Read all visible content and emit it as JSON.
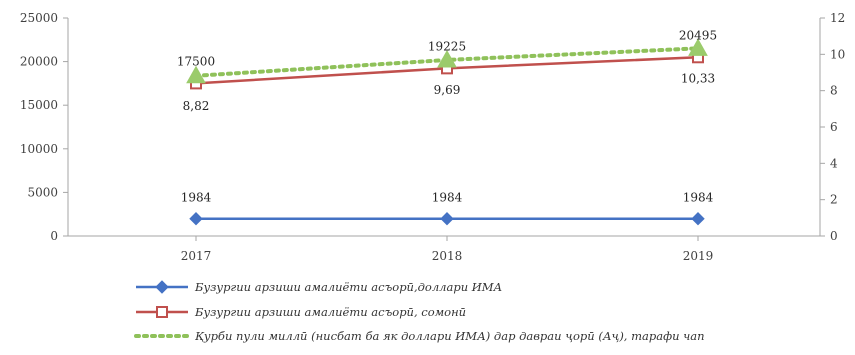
{
  "chart_data": {
    "type": "line",
    "categories": [
      "2017",
      "2018",
      "2019"
    ],
    "y_left": {
      "min": 0,
      "max": 25000,
      "ticks": [
        "0",
        "5000",
        "10000",
        "15000",
        "20000",
        "25000"
      ]
    },
    "y_right": {
      "min": 0,
      "max": 12,
      "ticks": [
        "0",
        "2",
        "4",
        "6",
        "8",
        "10",
        "12"
      ]
    },
    "grid": false,
    "legend_position": "bottom",
    "series": [
      {
        "name": "Бузургии арзиши амалиёти асъорӣ,доллари ИМА",
        "axis": "left",
        "marker": "diamond",
        "line_style": "solid",
        "color": "#4472C4",
        "values": [
          1984,
          1984,
          1984
        ],
        "labels": [
          "1984",
          "1984",
          "1984"
        ]
      },
      {
        "name": "Бузургии арзиши амалиёти асъорӣ, сомонӣ",
        "axis": "left",
        "marker": "square",
        "line_style": "solid",
        "color": "#C0504D",
        "values": [
          17500,
          19225,
          20495
        ],
        "labels": [
          "17500",
          "19225",
          "20495"
        ]
      },
      {
        "name": "Қурби пули миллӣ (нисбат ба як доллари ИМА) дар давраи ҷорӣ (Аҷ), тарафи чап",
        "axis": "right",
        "marker": "triangle",
        "line_style": "dotted",
        "color": "#8FC15A",
        "values": [
          8.82,
          9.69,
          10.33
        ],
        "labels": [
          "8,82",
          "9,69",
          "10,33"
        ]
      }
    ]
  }
}
